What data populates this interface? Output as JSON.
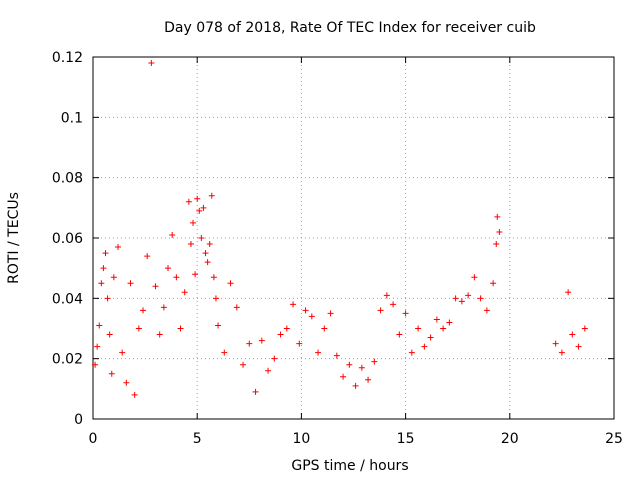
{
  "chart_data": {
    "type": "scatter",
    "title": "Day 078 of 2018, Rate Of TEC Index for receiver cuib",
    "xlabel": "GPS time / hours",
    "ylabel": "ROTI / TECUs",
    "xlim": [
      0,
      25
    ],
    "ylim": [
      0,
      0.12
    ],
    "x_ticks": [
      0,
      5,
      10,
      15,
      20,
      25
    ],
    "y_ticks": [
      0,
      0.02,
      0.04,
      0.06,
      0.08,
      0.1,
      0.12
    ],
    "x_tick_labels": [
      "0",
      "5",
      "10",
      "15",
      "20",
      "25"
    ],
    "y_tick_labels": [
      "0",
      "0.02",
      "0.04",
      "0.06",
      "0.08",
      "0.1",
      "0.12"
    ],
    "grid": true,
    "marker": "+",
    "series_color": "#ff0000",
    "series": [
      {
        "name": "ROTI",
        "points": [
          [
            0.1,
            0.018
          ],
          [
            0.2,
            0.024
          ],
          [
            0.3,
            0.031
          ],
          [
            0.4,
            0.045
          ],
          [
            0.5,
            0.05
          ],
          [
            0.6,
            0.055
          ],
          [
            0.7,
            0.04
          ],
          [
            0.8,
            0.028
          ],
          [
            0.9,
            0.015
          ],
          [
            1.0,
            0.047
          ],
          [
            1.2,
            0.057
          ],
          [
            1.4,
            0.022
          ],
          [
            1.6,
            0.012
          ],
          [
            1.8,
            0.045
          ],
          [
            2.0,
            0.008
          ],
          [
            2.2,
            0.03
          ],
          [
            2.4,
            0.036
          ],
          [
            2.6,
            0.054
          ],
          [
            2.8,
            0.118
          ],
          [
            3.0,
            0.044
          ],
          [
            3.2,
            0.028
          ],
          [
            3.4,
            0.037
          ],
          [
            3.6,
            0.05
          ],
          [
            3.8,
            0.061
          ],
          [
            4.0,
            0.047
          ],
          [
            4.2,
            0.03
          ],
          [
            4.4,
            0.042
          ],
          [
            4.6,
            0.072
          ],
          [
            4.7,
            0.058
          ],
          [
            4.8,
            0.065
          ],
          [
            4.9,
            0.048
          ],
          [
            5.0,
            0.073
          ],
          [
            5.1,
            0.069
          ],
          [
            5.2,
            0.06
          ],
          [
            5.3,
            0.07
          ],
          [
            5.4,
            0.055
          ],
          [
            5.5,
            0.052
          ],
          [
            5.6,
            0.058
          ],
          [
            5.7,
            0.074
          ],
          [
            5.8,
            0.047
          ],
          [
            5.9,
            0.04
          ],
          [
            6.0,
            0.031
          ],
          [
            6.3,
            0.022
          ],
          [
            6.6,
            0.045
          ],
          [
            6.9,
            0.037
          ],
          [
            7.2,
            0.018
          ],
          [
            7.5,
            0.025
          ],
          [
            7.8,
            0.009
          ],
          [
            8.1,
            0.026
          ],
          [
            8.4,
            0.016
          ],
          [
            8.7,
            0.02
          ],
          [
            9.0,
            0.028
          ],
          [
            9.3,
            0.03
          ],
          [
            9.6,
            0.038
          ],
          [
            9.9,
            0.025
          ],
          [
            10.2,
            0.036
          ],
          [
            10.5,
            0.034
          ],
          [
            10.8,
            0.022
          ],
          [
            11.1,
            0.03
          ],
          [
            11.4,
            0.035
          ],
          [
            11.7,
            0.021
          ],
          [
            12.0,
            0.014
          ],
          [
            12.3,
            0.018
          ],
          [
            12.6,
            0.011
          ],
          [
            12.9,
            0.017
          ],
          [
            13.2,
            0.013
          ],
          [
            13.5,
            0.019
          ],
          [
            13.8,
            0.036
          ],
          [
            14.1,
            0.041
          ],
          [
            14.4,
            0.038
          ],
          [
            14.7,
            0.028
          ],
          [
            15.0,
            0.035
          ],
          [
            15.3,
            0.022
          ],
          [
            15.6,
            0.03
          ],
          [
            15.9,
            0.024
          ],
          [
            16.2,
            0.027
          ],
          [
            16.5,
            0.033
          ],
          [
            16.8,
            0.03
          ],
          [
            17.1,
            0.032
          ],
          [
            17.4,
            0.04
          ],
          [
            17.7,
            0.039
          ],
          [
            18.0,
            0.041
          ],
          [
            18.3,
            0.047
          ],
          [
            18.6,
            0.04
          ],
          [
            18.9,
            0.036
          ],
          [
            19.2,
            0.045
          ],
          [
            19.35,
            0.058
          ],
          [
            19.4,
            0.067
          ],
          [
            19.5,
            0.062
          ],
          [
            22.2,
            0.025
          ],
          [
            22.5,
            0.022
          ],
          [
            22.8,
            0.042
          ],
          [
            23.0,
            0.028
          ],
          [
            23.3,
            0.024
          ],
          [
            23.6,
            0.03
          ]
        ]
      }
    ]
  }
}
